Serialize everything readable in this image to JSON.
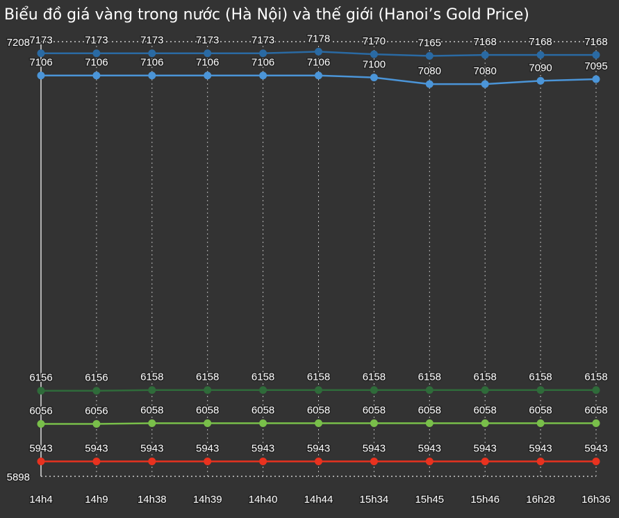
{
  "chart_data": {
    "type": "line",
    "title": "Biểu đồ giá vàng trong nước (Hà Nội) và thế giới (Hanoi’s Gold Price)",
    "categories": [
      "14h4",
      "14h9",
      "14h38",
      "14h39",
      "14h40",
      "14h44",
      "15h34",
      "15h45",
      "15h46",
      "16h28",
      "16h36"
    ],
    "series": [
      {
        "color": "#2a6aa3",
        "values": [
          7173,
          7173,
          7173,
          7173,
          7173,
          7178,
          7170,
          7165,
          7168,
          7168,
          7168
        ]
      },
      {
        "color": "#4b95d8",
        "values": [
          7106,
          7106,
          7106,
          7106,
          7106,
          7106,
          7100,
          7080,
          7080,
          7090,
          7095
        ]
      },
      {
        "color": "#2f6b3a",
        "values": [
          6156,
          6156,
          6158,
          6158,
          6158,
          6158,
          6158,
          6158,
          6158,
          6158,
          6158
        ]
      },
      {
        "color": "#79bf4a",
        "values": [
          6056,
          6056,
          6058,
          6058,
          6058,
          6058,
          6058,
          6058,
          6058,
          6058,
          6058
        ]
      },
      {
        "color": "#e8321f",
        "values": [
          5943,
          5943,
          5943,
          5943,
          5943,
          5943,
          5943,
          5943,
          5943,
          5943,
          5943
        ]
      }
    ],
    "ylim": [
      5898,
      7208
    ],
    "yticks": [
      5898,
      7208
    ],
    "grid": true
  }
}
